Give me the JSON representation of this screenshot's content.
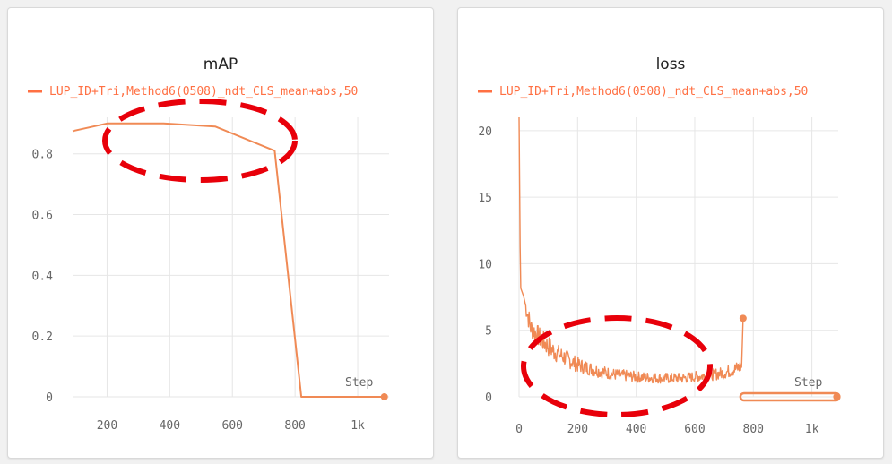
{
  "colors": {
    "series": "#f08a55",
    "legend": "#ff7043",
    "annotation": "#e8000a"
  },
  "chart_data": [
    {
      "type": "line",
      "title": "mAP",
      "legend": "LUP_ID+Tri,Method6(0508)_ndt_CLS_mean+abs,50",
      "step_label": "Step",
      "xlim": [
        90,
        1100
      ],
      "ylim": [
        0,
        0.92
      ],
      "x_ticks": [
        200,
        400,
        600,
        800,
        1000
      ],
      "x_tick_labels": [
        "200",
        "400",
        "600",
        "800",
        "1k"
      ],
      "y_ticks": [
        0,
        0.2,
        0.4,
        0.6,
        0.8
      ],
      "y_tick_labels": [
        "0",
        "0.2",
        "0.4",
        "0.6",
        "0.8"
      ],
      "series": [
        {
          "x": [
            90,
            200,
            380,
            545,
            735,
            820,
            1085
          ],
          "y": [
            0.875,
            0.9,
            0.9,
            0.89,
            0.81,
            0.0,
            0.0
          ]
        }
      ],
      "end_marker": {
        "x": 1085,
        "y": 0.0
      },
      "annotation": "ellipse"
    },
    {
      "type": "line",
      "title": "loss",
      "legend": "LUP_ID+Tri,Method6(0508)_ndt_CLS_mean+abs,50",
      "step_label": "Step",
      "xlim": [
        0,
        1090
      ],
      "ylim": [
        0,
        21
      ],
      "x_ticks": [
        0,
        200,
        400,
        600,
        800,
        1000
      ],
      "x_tick_labels": [
        "0",
        "200",
        "400",
        "600",
        "800",
        "1k"
      ],
      "y_ticks": [
        0,
        5,
        10,
        15,
        20
      ],
      "y_tick_labels": [
        "0",
        "5",
        "10",
        "15",
        "20"
      ],
      "series": [
        {
          "x": [
            0,
            5,
            15,
            40,
            80,
            120,
            160,
            200,
            260,
            320,
            400,
            480,
            560,
            640,
            700,
            740,
            760,
            765
          ],
          "y": [
            21,
            8.2,
            7.6,
            5.2,
            4.2,
            3.4,
            2.9,
            2.4,
            2.0,
            1.7,
            1.5,
            1.4,
            1.4,
            1.6,
            1.8,
            2.1,
            2.3,
            5.9
          ]
        }
      ],
      "end_marker": {
        "x": 765,
        "y": 5.9
      },
      "annotation": "ellipse"
    }
  ]
}
